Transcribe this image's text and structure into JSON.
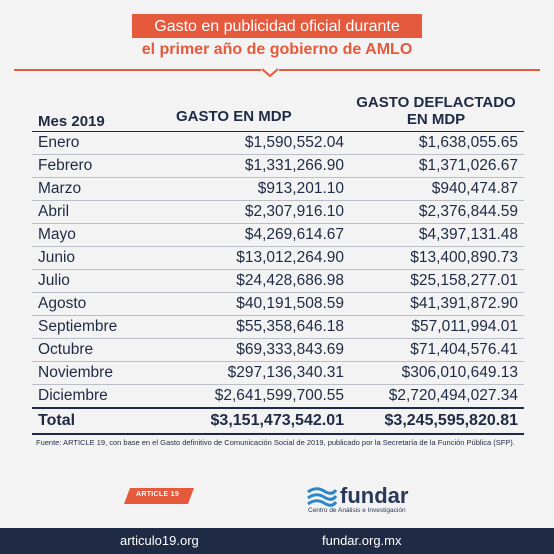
{
  "title": {
    "line1": "Gasto en publicidad oficial durante",
    "line2": "el primer año de gobierno de AMLO"
  },
  "columns": {
    "month": "Mes 2019",
    "spend": "GASTO EN MDP",
    "deflated_line1": "GASTO DEFLACTADO",
    "deflated_line2": "EN MDP"
  },
  "rows": [
    {
      "month": "Enero",
      "spend": "$1,590,552.04",
      "deflated": "$1,638,055.65"
    },
    {
      "month": "Febrero",
      "spend": "$1,331,266.90",
      "deflated": "$1,371,026.67"
    },
    {
      "month": "Marzo",
      "spend": "$913,201.10",
      "deflated": "$940,474.87"
    },
    {
      "month": "Abril",
      "spend": "$2,307,916.10",
      "deflated": "$2,376,844.59"
    },
    {
      "month": "Mayo",
      "spend": "$4,269,614.67",
      "deflated": "$4,397,131.48"
    },
    {
      "month": "Junio",
      "spend": "$13,012,264.90",
      "deflated": "$13,400,890.73"
    },
    {
      "month": "Julio",
      "spend": "$24,428,686.98",
      "deflated": "$25,158,277.01"
    },
    {
      "month": "Agosto",
      "spend": "$40,191,508.59",
      "deflated": "$41,391,872.90"
    },
    {
      "month": "Septiembre",
      "spend": "$55,358,646.18",
      "deflated": "$57,011,994.01"
    },
    {
      "month": "Octubre",
      "spend": "$69,333,843.69",
      "deflated": "$71,404,576.41"
    },
    {
      "month": "Noviembre",
      "spend": "$297,136,340.31",
      "deflated": "$306,010,649.13"
    },
    {
      "month": "Diciembre",
      "spend": "$2,641,599,700.55",
      "deflated": "$2,720,494,027.34"
    }
  ],
  "total": {
    "label": "Total",
    "spend": "$3,151,473,542.01",
    "deflated": "$3,245,595,820.81"
  },
  "source": "Fuente: ARTICLE 19, con base en el Gasto definitivo de Comunicación Social de 2019, publicado por la Secretaría de la Función Pública (SFP).",
  "logos": {
    "article19": "ARTICLE 19",
    "fundar_name": "fundar",
    "fundar_sub": "Centro de Análisis e Investigación"
  },
  "footer": {
    "left": "articulo19.org",
    "right": "fundar.org.mx"
  },
  "colors": {
    "accent": "#e5593d",
    "navy": "#1f2a44",
    "background": "#f3f3f3"
  }
}
